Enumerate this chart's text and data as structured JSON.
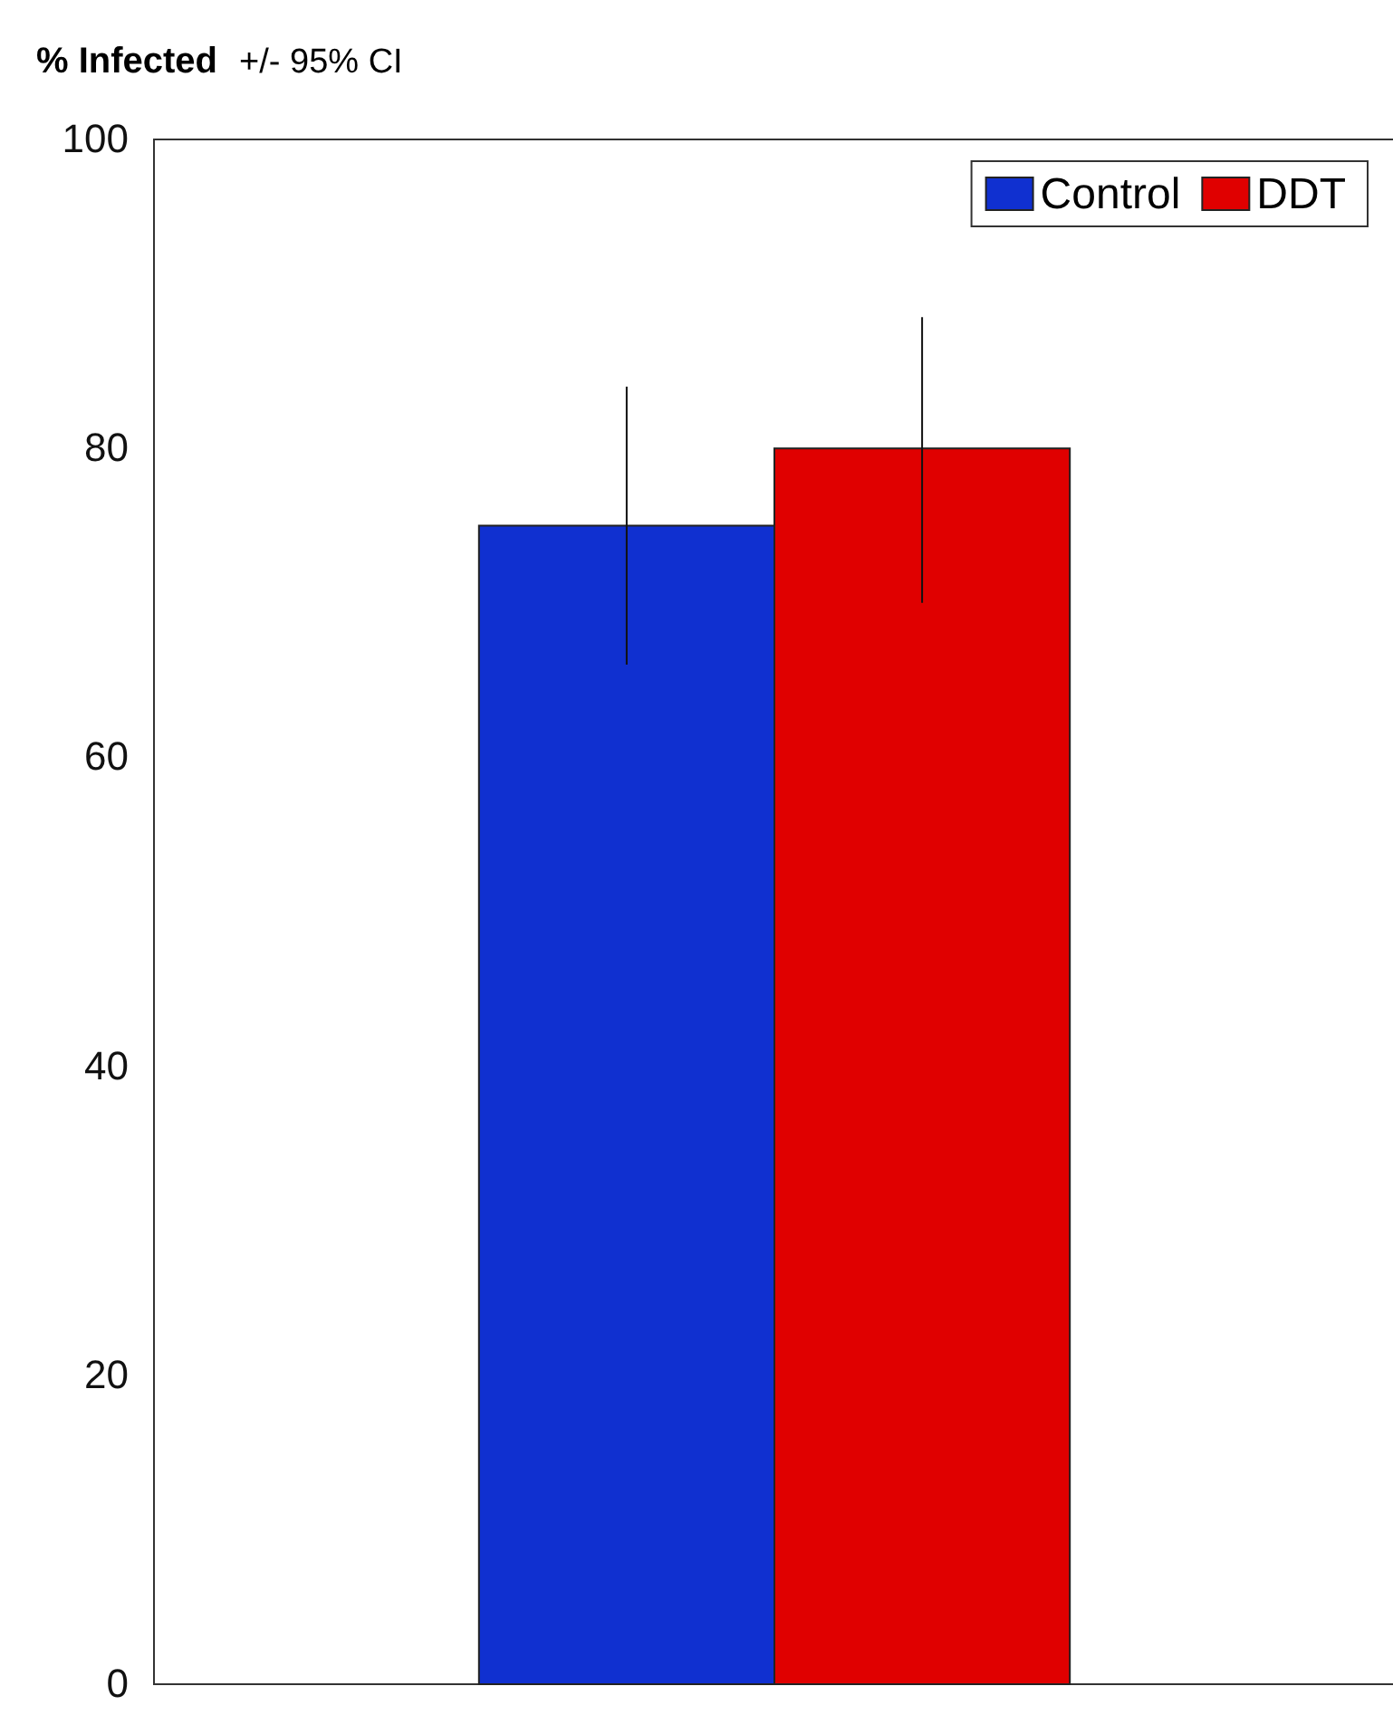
{
  "chart_data": {
    "type": "bar",
    "title": "% Infected",
    "subtitle": "+/- 95% CI",
    "categories": [
      null
    ],
    "series": [
      {
        "name": "Control",
        "color": "#1030d0",
        "values": [
          75
        ],
        "errors": [
          [
            66,
            84
          ]
        ]
      },
      {
        "name": "DDT",
        "color": "#e00000",
        "values": [
          80
        ],
        "errors": [
          [
            70,
            88.5
          ]
        ]
      }
    ],
    "ylim": [
      0,
      100
    ],
    "yticks": [
      0,
      20,
      40,
      60,
      80,
      100
    ],
    "legend": "top right",
    "grid": false
  }
}
